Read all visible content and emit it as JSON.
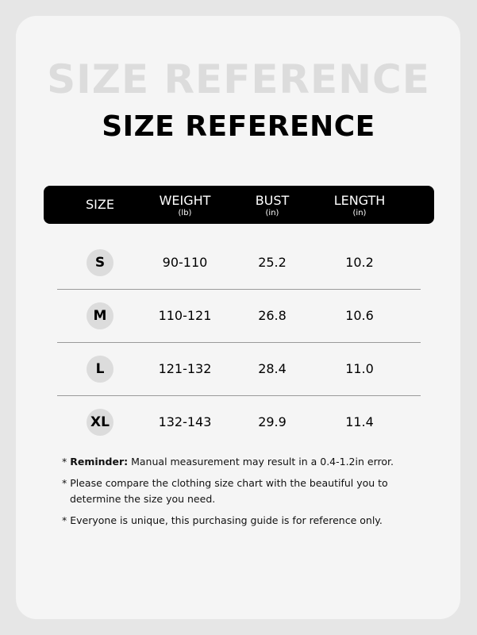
{
  "title": "SIZE REFERENCE",
  "ghost_title": "SIZE REFERENCE",
  "headers": [
    {
      "label": "SIZE",
      "unit": ""
    },
    {
      "label": "WEIGHT",
      "unit": "(lb)"
    },
    {
      "label": "BUST",
      "unit": "(in)"
    },
    {
      "label": "LENGTH",
      "unit": "(in)"
    }
  ],
  "rows": [
    {
      "size": "S",
      "weight": "90-110",
      "bust": "25.2",
      "length": "10.2"
    },
    {
      "size": "M",
      "weight": "110-121",
      "bust": "26.8",
      "length": "10.6"
    },
    {
      "size": "L",
      "weight": "121-132",
      "bust": "28.4",
      "length": "11.0"
    },
    {
      "size": "XL",
      "weight": "132-143",
      "bust": "29.9",
      "length": "11.4"
    }
  ],
  "notes": {
    "bullet": "*",
    "reminder_label": "Reminder:",
    "reminder_text": " Manual measurement may result in a 0.4-1.2in error.",
    "note2": "Please compare the clothing size chart with the beautiful you to determine the size you need.",
    "note3": "Everyone is unique, this purchasing guide is for reference only."
  }
}
